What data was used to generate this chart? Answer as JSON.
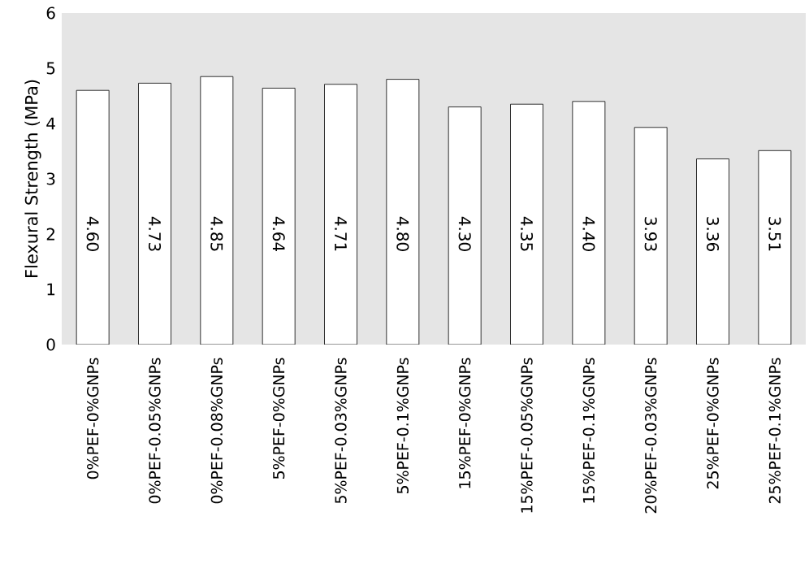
{
  "chart_data": {
    "type": "bar",
    "ylabel": "Flexural Strength (MPa)",
    "categories": [
      "0%PEF-0%GNPs",
      "0%PEF-0.05%GNPs",
      "0%PEF-0.08%GNPs",
      "5%PEF-0%GNPs",
      "5%PEF-0.03%GNPs",
      "5%PEF-0.1%GNPs",
      "15%PEF-0%GNPs",
      "15%PEF-0.05%GNPs",
      "15%PEF-0.1%GNPs",
      "20%PEF-0.03%GNPs",
      "25%PEF-0%GNPs",
      "25%PEF-0.1%GNPs"
    ],
    "values": [
      4.6,
      4.73,
      4.85,
      4.64,
      4.71,
      4.8,
      4.3,
      4.35,
      4.4,
      3.93,
      3.36,
      3.51
    ],
    "value_labels": [
      "4.60",
      "4.73",
      "4.85",
      "4.64",
      "4.71",
      "4.80",
      "4.30",
      "4.35",
      "4.40",
      "3.93",
      "3.36",
      "3.51"
    ],
    "color": "#ffffff",
    "ylim": [
      0,
      6
    ],
    "yticks": [
      0,
      1,
      2,
      3,
      4,
      5,
      6
    ],
    "grid": false
  }
}
